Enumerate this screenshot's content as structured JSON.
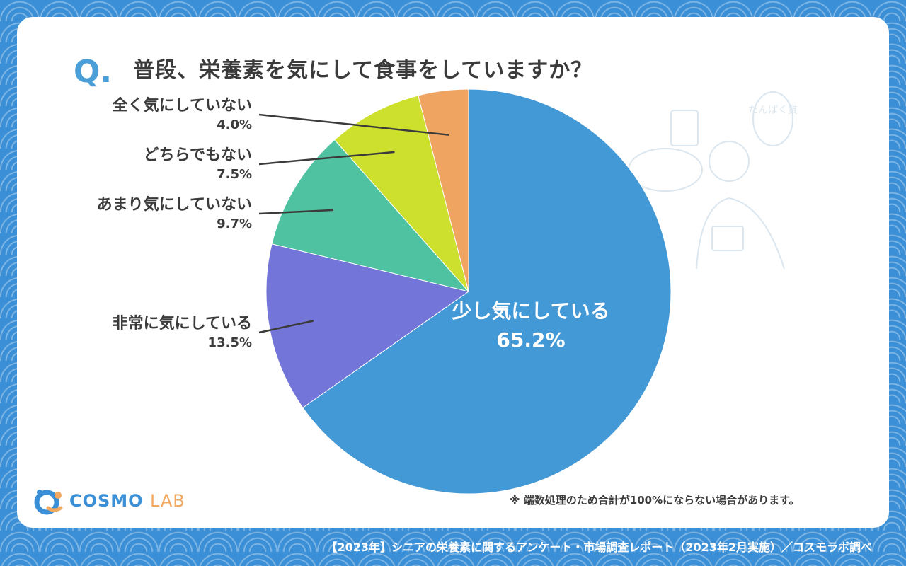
{
  "title": {
    "q": "Q.",
    "text": "普段、栄養素を気にして食事をしていますか？"
  },
  "colors": {
    "background": "#3a8fd6",
    "card": "#ffffff",
    "accent": "#4a9fd8",
    "text": "#3b3b3b"
  },
  "chart_data": {
    "type": "pie",
    "title": "普段、栄養素を気にして食事をしていますか？",
    "slices": [
      {
        "label": "少し気にしている",
        "value": 65.2,
        "value_label": "65.2%",
        "color": "#4398d6"
      },
      {
        "label": "非常に気にしている",
        "value": 13.5,
        "value_label": "13.5%",
        "color": "#7375d8"
      },
      {
        "label": "あまり気にしていない",
        "value": 9.7,
        "value_label": "9.7%",
        "color": "#4fc2a2"
      },
      {
        "label": "どちらでもない",
        "value": 7.5,
        "value_label": "7.5%",
        "color": "#cde02d"
      },
      {
        "label": "全く気にしていない",
        "value": 4.0,
        "value_label": "4.0%",
        "color": "#f0a462"
      }
    ],
    "direction": "clockwise",
    "start": "top"
  },
  "note": "※ 端数処理のため合計が100%にならない場合があります。",
  "logo": {
    "main": "COSMO",
    "sub": "LAB"
  },
  "footer": "【2023年】シニアの栄養素に関するアンケート・市場調査レポート（2023年2月実施）／コスモラボ調べ",
  "illustration": {
    "icon": "senior-taking-notes-illustration",
    "bubble_text": "たんぱく質"
  }
}
